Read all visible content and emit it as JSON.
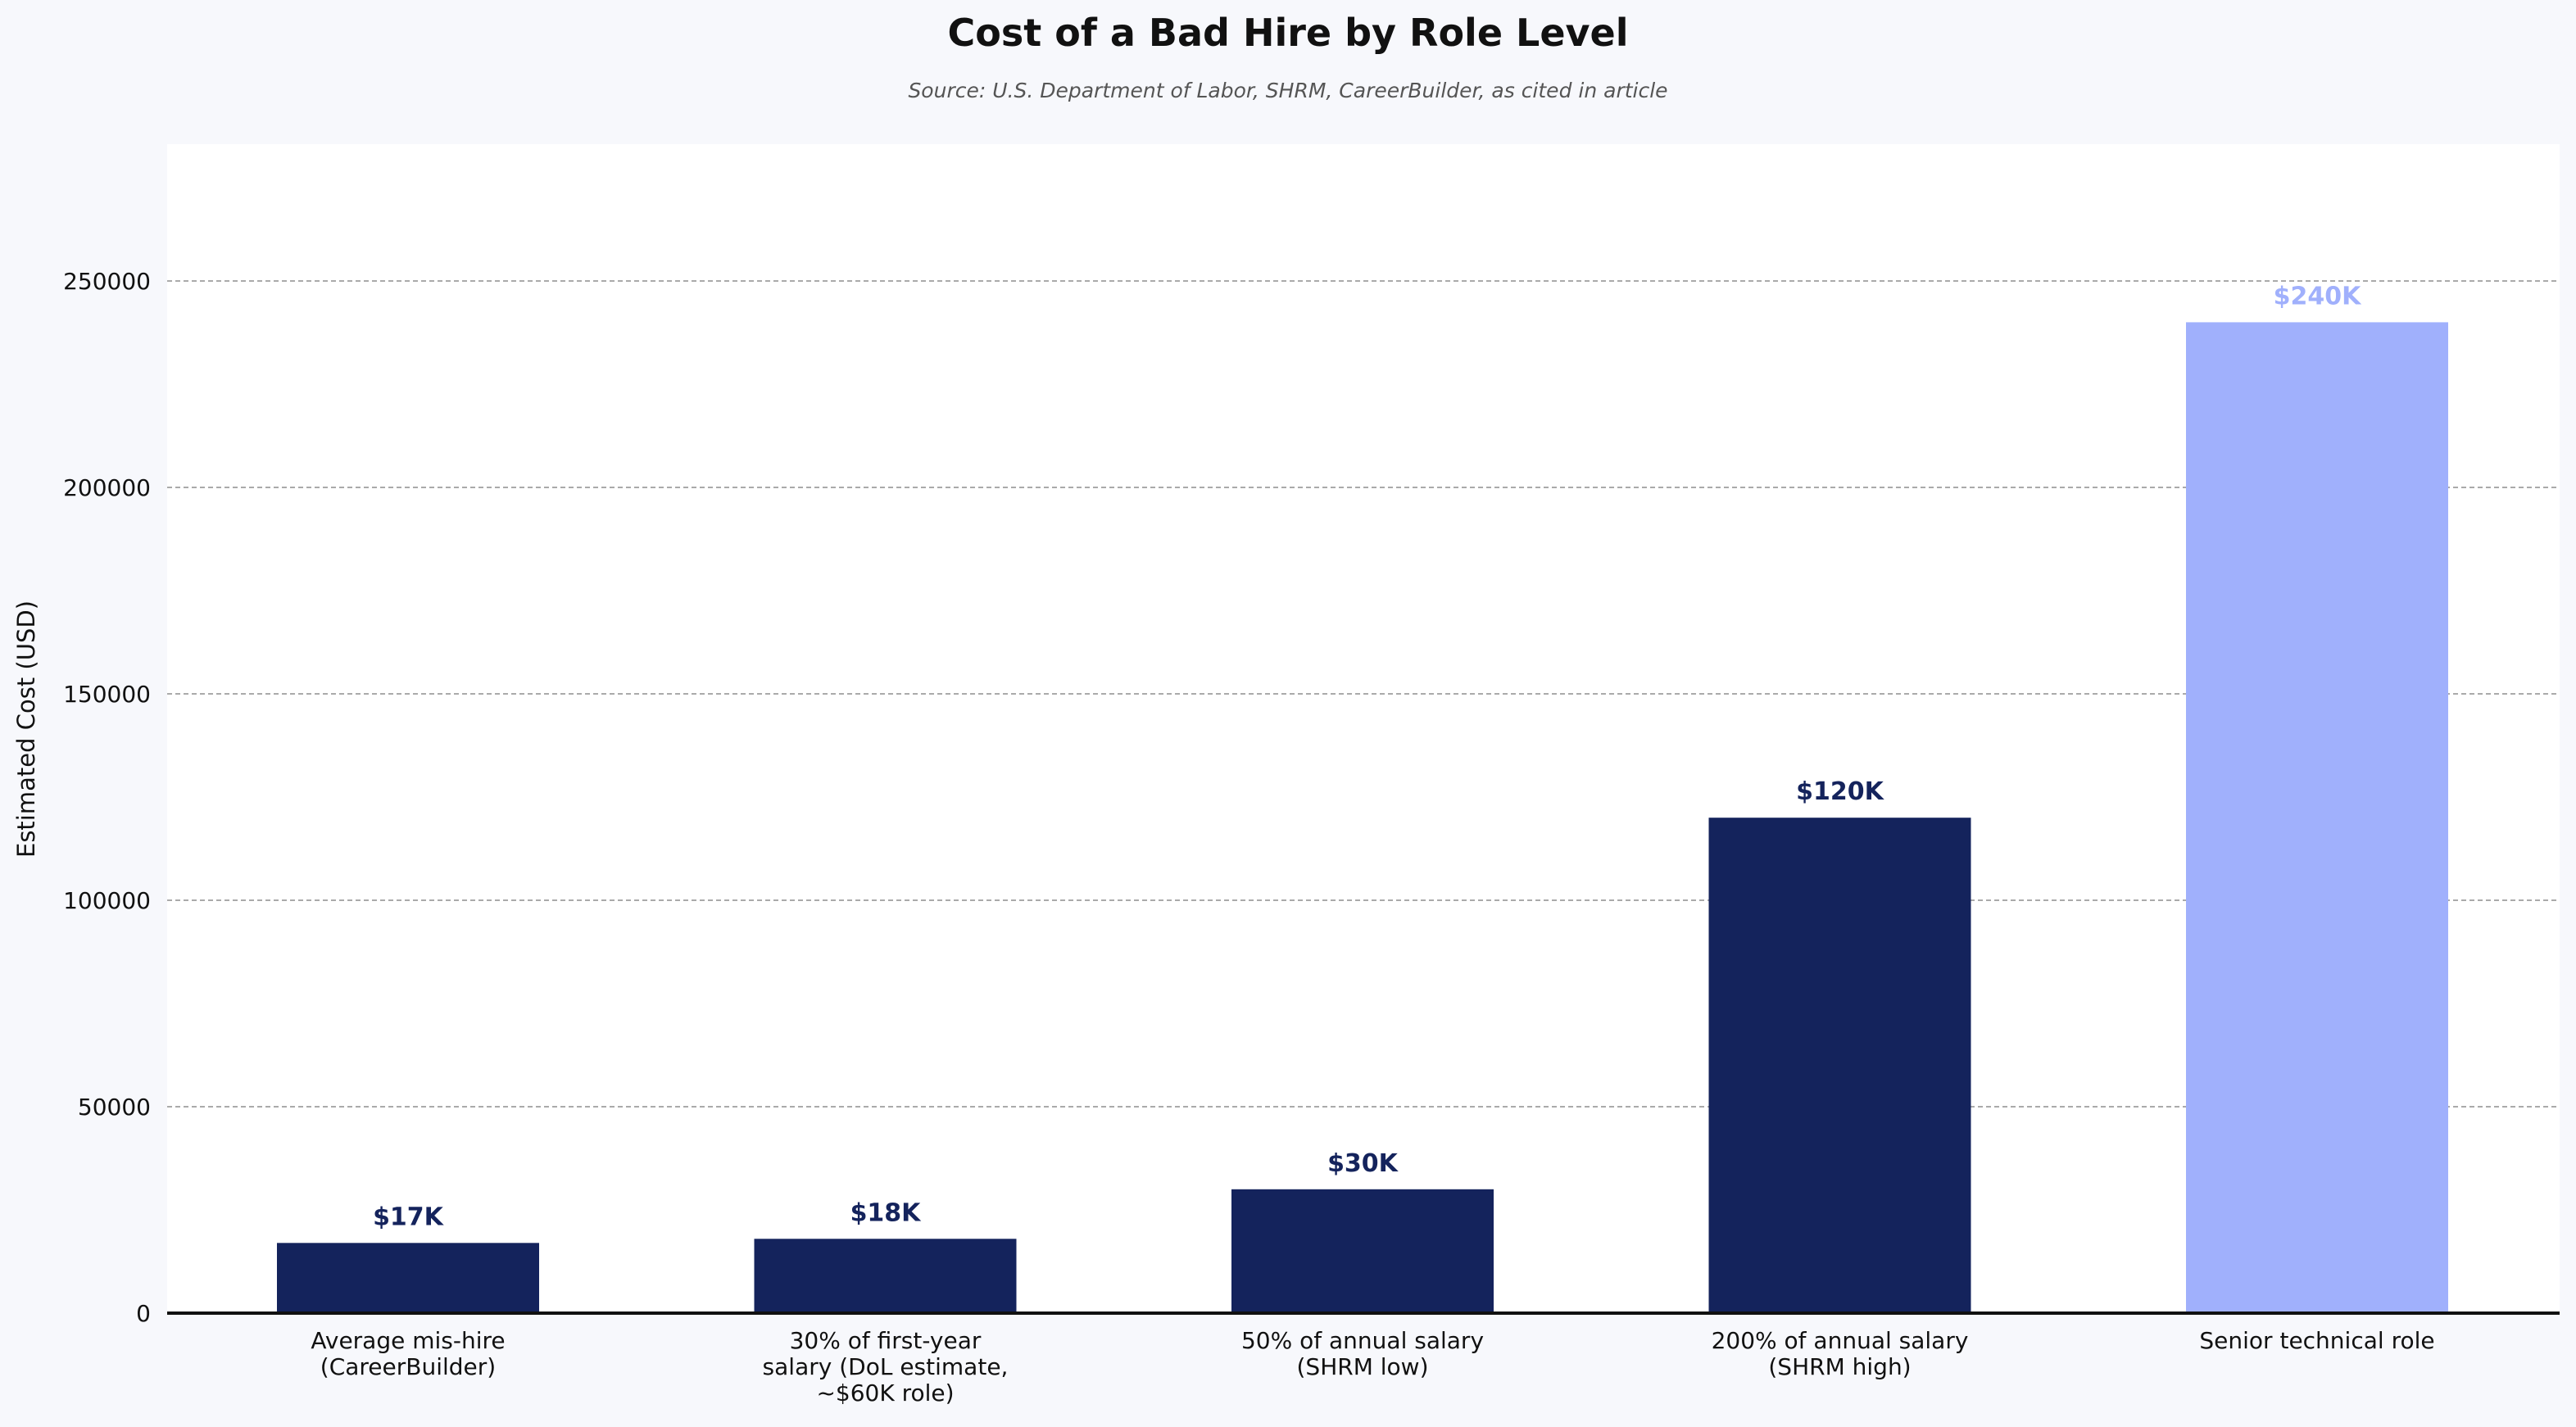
{
  "chart_data": {
    "type": "bar",
    "title": "Cost of a Bad Hire by Role Level",
    "subtitle": "Source: U.S. Department of Labor, SHRM, CareerBuilder, as cited in article",
    "xlabel": "",
    "ylabel": "Estimated Cost (USD)",
    "ylim": [
      0,
      280000
    ],
    "yticks": [
      0,
      50000,
      100000,
      150000,
      200000,
      250000
    ],
    "grid": true,
    "categories": [
      [
        "Average mis-hire",
        "(CareerBuilder)"
      ],
      [
        "30% of first-year",
        "salary (DoL estimate,",
        "~$60K role)"
      ],
      [
        "50% of annual salary",
        "(SHRM low)"
      ],
      [
        "200% of annual salary",
        "(SHRM high)"
      ],
      [
        "Senior technical role"
      ]
    ],
    "values": [
      17000,
      18000,
      30000,
      120000,
      240000
    ],
    "data_labels": [
      "$17K",
      "$18K",
      "$30K",
      "$120K",
      "$240K"
    ],
    "bar_colors": [
      "#14235c",
      "#14235c",
      "#14235c",
      "#14235c",
      "#a0b0fc"
    ],
    "colors": {
      "background": "#f7f8fc",
      "plot_background": "#ffffff",
      "primary_bar": "#14235c",
      "highlight_bar": "#a0b0fc"
    }
  }
}
